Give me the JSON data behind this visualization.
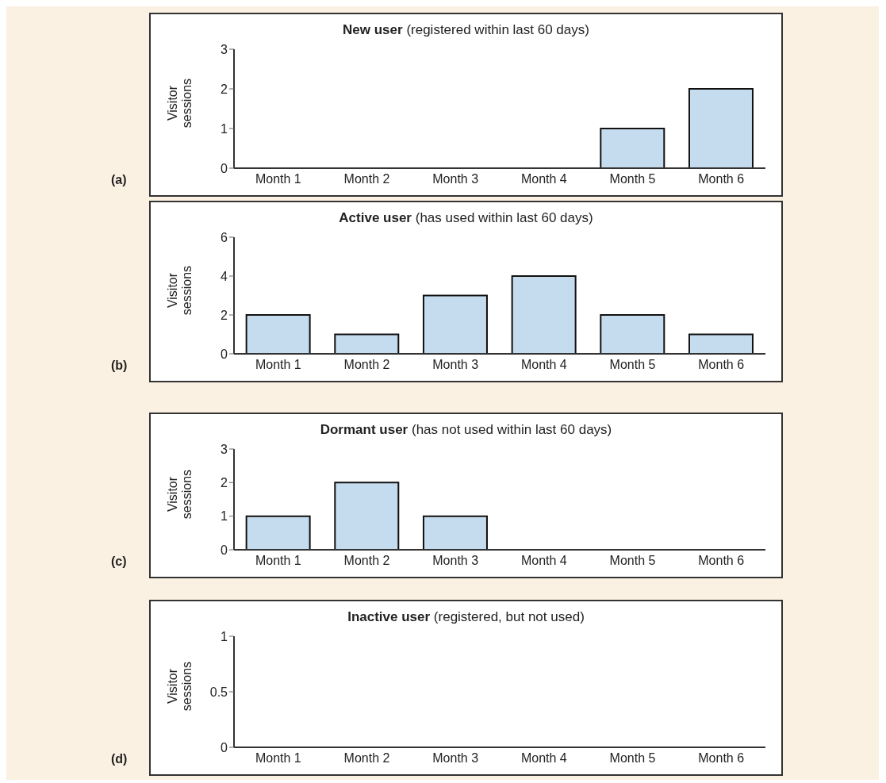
{
  "chart_data": [
    {
      "type": "bar",
      "title": "New user",
      "subtitle": "(registered within last 60 days)",
      "ylabel": "Visitor sessions",
      "categories": [
        "Month 1",
        "Month 2",
        "Month 3",
        "Month 4",
        "Month 5",
        "Month 6"
      ],
      "values": [
        0,
        0,
        0,
        0,
        1,
        2
      ],
      "color": "#c5dbee",
      "ylim": [
        0,
        3
      ],
      "yticks": [
        0,
        1,
        2,
        3
      ],
      "grid": false,
      "legend": false,
      "annotations": [
        "(a)"
      ]
    },
    {
      "type": "bar",
      "title": "Active user",
      "subtitle": "(has used within last 60 days)",
      "ylabel": "Visitor sessions",
      "categories": [
        "Month 1",
        "Month 2",
        "Month 3",
        "Month 4",
        "Month 5",
        "Month 6"
      ],
      "values": [
        2,
        1,
        3,
        4,
        2,
        1
      ],
      "color": "#c5dbee",
      "ylim": [
        0,
        6
      ],
      "yticks": [
        0,
        2,
        4,
        6
      ],
      "grid": false,
      "legend": false,
      "annotations": [
        "(b)"
      ]
    },
    {
      "type": "bar",
      "title": "Dormant user",
      "subtitle": "(has not used within last 60 days)",
      "ylabel": "Visitor sessions",
      "categories": [
        "Month 1",
        "Month 2",
        "Month 3",
        "Month 4",
        "Month 5",
        "Month 6"
      ],
      "values": [
        1,
        2,
        1,
        0,
        0,
        0
      ],
      "color": "#c5dbee",
      "ylim": [
        0,
        3
      ],
      "yticks": [
        0,
        1,
        2,
        3
      ],
      "grid": false,
      "legend": false,
      "annotations": [
        "(c)"
      ]
    },
    {
      "type": "bar",
      "title": "Inactive user",
      "subtitle": "(registered, but not used)",
      "ylabel": "Visitor sessions",
      "categories": [
        "Month 1",
        "Month 2",
        "Month 3",
        "Month 4",
        "Month 5",
        "Month 6"
      ],
      "values": [
        0,
        0,
        0,
        0,
        0,
        0
      ],
      "color": "#c5dbee",
      "ylim": [
        0,
        1
      ],
      "yticks": [
        0,
        0.5,
        1
      ],
      "grid": false,
      "legend": false,
      "annotations": [
        "(d)"
      ]
    }
  ]
}
